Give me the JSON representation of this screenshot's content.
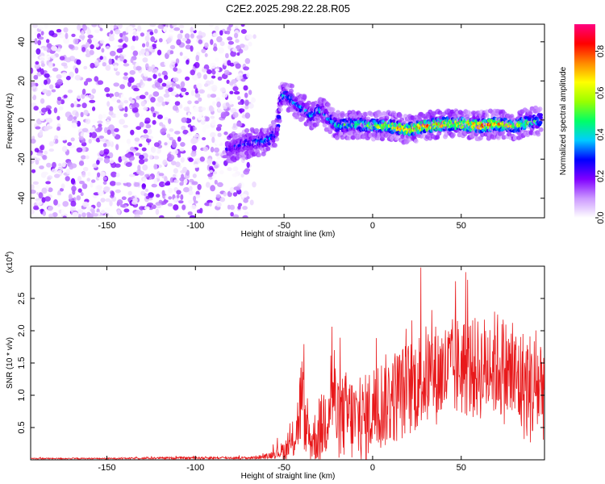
{
  "title": "C2E2.2025.298.22.28.R05",
  "chart_data": [
    {
      "type": "heatmap",
      "xlabel": "Height of straight line (km)",
      "ylabel": "Frequency (Hz)",
      "xlim": [
        -193,
        97
      ],
      "ylim": [
        -50,
        49
      ],
      "xticks": [
        -150,
        -100,
        -50,
        0,
        50
      ],
      "yticks": [
        -40,
        -20,
        0,
        20,
        40
      ],
      "colorbar": {
        "label": "Normalized spectral amplitude",
        "range": [
          0,
          0.93
        ],
        "ticks": [
          "0.0",
          "0.2",
          "0.4",
          "0.6",
          "0.8"
        ],
        "colormap": [
          "#ffffff",
          "#cc99ff",
          "#8000ff",
          "#0000ff",
          "#00ccff",
          "#00ff66",
          "#99ff00",
          "#ffff00",
          "#ff8800",
          "#ff0000",
          "#ff0080"
        ]
      },
      "noise_region": {
        "x": [
          -193,
          -70
        ],
        "y": [
          -50,
          49
        ],
        "amplitude_range": [
          0.0,
          0.2
        ]
      },
      "signal_track": {
        "x": [
          -82,
          -76,
          -70,
          -64,
          -58,
          -54,
          -52,
          -50,
          -46,
          -42,
          -38,
          -34,
          -30,
          -26,
          -20,
          -10,
          0,
          10,
          20,
          30,
          40,
          50,
          60,
          70,
          80,
          90,
          95
        ],
        "frequency": [
          -15,
          -13,
          -12,
          -11,
          -10,
          -6,
          10,
          13,
          11,
          7,
          5,
          2,
          5,
          2,
          -3,
          -2,
          -3,
          -3,
          -5,
          -3,
          -2,
          -2,
          -3,
          -2,
          -3,
          -1,
          0
        ],
        "peak_amplitude": [
          0.25,
          0.3,
          0.35,
          0.4,
          0.4,
          0.3,
          0.35,
          0.45,
          0.4,
          0.4,
          0.35,
          0.4,
          0.4,
          0.4,
          0.45,
          0.55,
          0.6,
          0.7,
          0.8,
          0.85,
          0.85,
          0.8,
          0.85,
          0.8,
          0.7,
          0.55,
          0.5
        ]
      }
    },
    {
      "type": "line",
      "xlabel": "Height of straight line (km)",
      "ylabel": "SNR (10 * v/v)",
      "scale_label": "(x10",
      "scale_exponent": "4",
      "xlim": [
        -193,
        97
      ],
      "ylim": [
        0,
        3.0
      ],
      "xticks": [
        -150,
        -100,
        -50,
        0,
        50
      ],
      "yticks": [
        "0.5",
        "1.0",
        "1.5",
        "2.0",
        "2.5"
      ],
      "series": [
        {
          "color": "#e8191b",
          "x": [
            -193,
            -150,
            -100,
            -70,
            -60,
            -55,
            -50,
            -45,
            -42,
            -40,
            -38,
            -35,
            -30,
            -25,
            -23,
            -20,
            -15,
            -10,
            -5,
            0,
            10,
            20,
            30,
            40,
            50,
            60,
            70,
            80,
            90,
            97
          ],
          "y": [
            0.02,
            0.02,
            0.03,
            0.03,
            0.05,
            0.1,
            0.15,
            0.25,
            0.6,
            1.0,
            0.5,
            0.3,
            0.4,
            0.8,
            1.3,
            0.6,
            0.7,
            0.6,
            0.6,
            0.8,
            0.95,
            1.1,
            1.3,
            1.35,
            1.45,
            1.4,
            1.5,
            1.25,
            1.1,
            1.2
          ],
          "spread": [
            0.01,
            0.01,
            0.02,
            0.02,
            0.04,
            0.08,
            0.15,
            0.25,
            0.5,
            0.8,
            0.4,
            0.35,
            0.5,
            0.7,
            1.2,
            0.6,
            0.7,
            0.7,
            0.7,
            0.7,
            0.75,
            0.75,
            0.8,
            0.8,
            0.8,
            0.8,
            0.85,
            0.85,
            0.9,
            0.9
          ]
        }
      ]
    }
  ]
}
